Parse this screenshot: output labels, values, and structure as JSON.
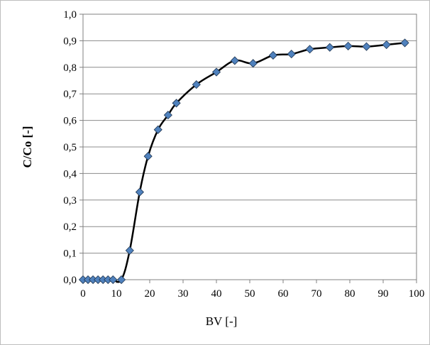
{
  "chart_data": {
    "type": "line",
    "title": "",
    "xlabel": "BV [-]",
    "ylabel": "C/Co [-]",
    "xlim": [
      0,
      100
    ],
    "ylim": [
      0,
      1.0
    ],
    "x_ticks": [
      "0",
      "10",
      "20",
      "30",
      "40",
      "50",
      "60",
      "70",
      "80",
      "90",
      "100"
    ],
    "y_ticks": [
      "0,0",
      "0,1",
      "0,2",
      "0,3",
      "0,4",
      "0,5",
      "0,6",
      "0,7",
      "0,8",
      "0,9",
      "1,0"
    ],
    "grid": {
      "horizontal": true,
      "vertical": false
    },
    "legend": "none",
    "series": [
      {
        "marker": "diamond",
        "line_color": "#000000",
        "marker_color": "#4f81bd",
        "x": [
          0,
          1.5,
          3,
          4.5,
          6,
          7.5,
          9,
          11.5,
          14,
          17,
          19.5,
          22.5,
          25.5,
          28,
          34,
          40,
          45.5,
          51,
          57,
          62.5,
          68,
          74,
          79.5,
          85,
          91,
          96.5
        ],
        "y": [
          0,
          0,
          0,
          0,
          0,
          0,
          0,
          0,
          0.11,
          0.33,
          0.465,
          0.565,
          0.62,
          0.665,
          0.735,
          0.782,
          0.825,
          0.815,
          0.845,
          0.85,
          0.868,
          0.875,
          0.88,
          0.878,
          0.885,
          0.892
        ]
      }
    ]
  }
}
